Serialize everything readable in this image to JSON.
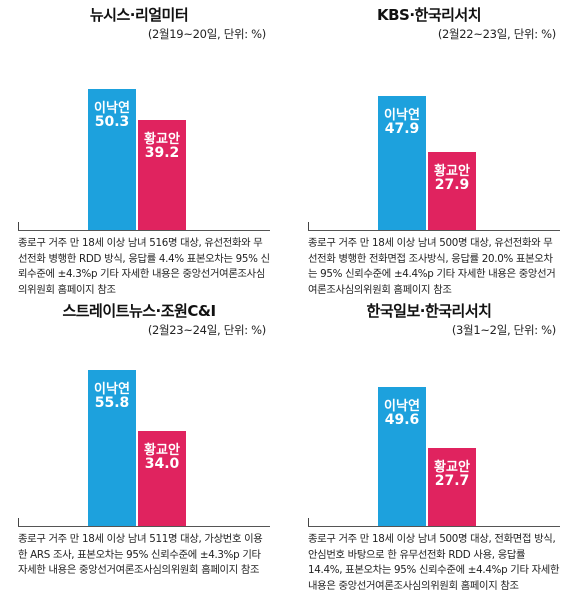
{
  "colors": {
    "lee": "#1da1dd",
    "hwang": "#e0235f"
  },
  "chart_data": [
    {
      "type": "bar",
      "title": "뉴시스·리얼미터",
      "subtitle": "(2월19~20일, 단위: %)",
      "categories": [
        "이낙연",
        "황교안"
      ],
      "values": [
        50.3,
        39.2
      ],
      "ylim": [
        0,
        60
      ],
      "note": "종로구 거주 만 18세 이상 남녀 516명 대상, 유선전화와 무선전화 병행한 RDD 방식, 응답률 4.4% 표본오차는 95% 신뢰수준에 ±4.3%p 기타 자세한 내용은 중앙선거여론조사심의위원회 홈페이지 참조"
    },
    {
      "type": "bar",
      "title": "KBS·한국리서치",
      "subtitle": "(2월22~23일, 단위: %)",
      "categories": [
        "이낙연",
        "황교안"
      ],
      "values": [
        47.9,
        27.9
      ],
      "ylim": [
        0,
        60
      ],
      "note": "종로구 거주 만 18세 이상 남녀 500명 대상, 유선전화와 무선전화 병행한 전화면접 조사방식, 응답률 20.0% 표본오차는 95% 신뢰수준에 ±4.4%p 기타 자세한 내용은 중앙선거여론조사심의위원회 홈페이지 참조"
    },
    {
      "type": "bar",
      "title": "스트레이트뉴스·조원C&I",
      "subtitle": "(2월23~24일, 단위: %)",
      "categories": [
        "이낙연",
        "황교안"
      ],
      "values": [
        55.8,
        34.0
      ],
      "ylim": [
        0,
        60
      ],
      "note": "종로구 거주 만 18세 이상 남녀 511명 대상, 가상번호 이용한 ARS 조사, 표본오차는 95% 신뢰수준에 ±4.3%p 기타 자세한 내용은 중앙선거여론조사심의위원회 홈페이지 참조"
    },
    {
      "type": "bar",
      "title": "한국일보·한국리서치",
      "subtitle": "(3월1~2일, 단위: %)",
      "categories": [
        "이낙연",
        "황교안"
      ],
      "values": [
        49.6,
        27.7
      ],
      "ylim": [
        0,
        60
      ],
      "note": "종로구 거주 만 18세 이상 남녀 500명 대상, 전화면접 방식, 안심번호 바탕으로 한 유무선전화 RDD 사용, 응답률 14.4%, 표본오차는 95% 신뢰수준에 ±4.4%p 기타 자세한 내용은 중앙선거여론조사심의위원회 홈페이지 참조"
    }
  ]
}
